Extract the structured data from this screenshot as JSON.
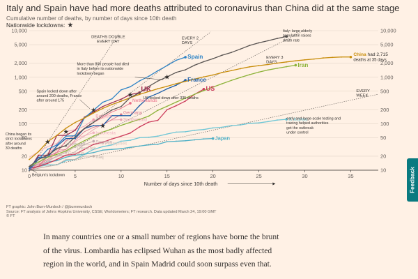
{
  "header": {
    "title": "Italy and Spain have had more deaths attributed to coronavirus than China did at the same stage",
    "subtitle": "Cumulative number of deaths, by number of days since 10th death",
    "lockdown_legend": "Nationwide lockdowns:"
  },
  "chart_data": {
    "type": "line",
    "title": "Italy and Spain have had more deaths attributed to coronavirus than China did at the same stage",
    "subtitle": "Cumulative number of deaths, by number of days since 10th death",
    "xlabel": "Number of days since 10th death",
    "ylabel": "",
    "xlim": [
      0,
      38
    ],
    "ylim": [
      10,
      10000
    ],
    "y_scale": "log",
    "x_ticks": [
      0,
      5,
      10,
      15,
      20,
      25,
      30,
      35
    ],
    "y_ticks": [
      10,
      20,
      50,
      100,
      200,
      500,
      1000,
      2000,
      5000,
      10000
    ],
    "y_tick_labels": [
      "10",
      "20",
      "50",
      "100",
      "200",
      "500",
      "1,000",
      "2,000",
      "5,000",
      "10,000"
    ],
    "grid": true,
    "guide_lines": [
      {
        "label": "DEATHS DOUBLE EVERY DAY",
        "doubling_days": 1
      },
      {
        "label": "EVERY 2 DAYS",
        "doubling_days": 2
      },
      {
        "label": "EVERY 3 DAYS",
        "doubling_days": 3
      },
      {
        "label": "EVERY WEEK",
        "doubling_days": 7
      }
    ],
    "series": [
      {
        "name": "Italy",
        "color": "#5a5553",
        "x": [
          0,
          1,
          2,
          3,
          4,
          5,
          6,
          7,
          8,
          9,
          10,
          11,
          12,
          13,
          14,
          15,
          16,
          17,
          18,
          19,
          20,
          21,
          22,
          23,
          24,
          25,
          26,
          27,
          28
        ],
        "y": [
          12,
          17,
          21,
          29,
          34,
          52,
          79,
          107,
          148,
          197,
          233,
          366,
          463,
          631,
          827,
          1016,
          1266,
          1441,
          1809,
          2158,
          2503,
          2978,
          3405,
          4032,
          4825,
          5476,
          6077,
          6820,
          7503
        ]
      },
      {
        "name": "China",
        "color": "#c88d0b",
        "x": [
          0,
          1,
          2,
          3,
          4,
          5,
          6,
          7,
          8,
          9,
          10,
          11,
          12,
          13,
          14,
          15,
          16,
          17,
          18,
          19,
          20,
          21,
          22,
          23,
          24,
          25,
          26,
          27,
          28,
          29,
          30,
          31,
          32,
          33,
          34,
          35
        ],
        "y": [
          17,
          25,
          41,
          56,
          80,
          106,
          132,
          170,
          213,
          259,
          304,
          362,
          426,
          492,
          565,
          638,
          724,
          813,
          910,
          1018,
          1115,
          1261,
          1383,
          1526,
          1669,
          1775,
          1873,
          2009,
          2126,
          2247,
          2360,
          2460,
          2595,
          2663,
          2715,
          2715
        ]
      },
      {
        "name": "Iran",
        "color": "#8db33a",
        "x": [
          0,
          1,
          2,
          3,
          4,
          5,
          6,
          7,
          8,
          9,
          10,
          11,
          12,
          13,
          14,
          15,
          16,
          17,
          18,
          19,
          20,
          21,
          22,
          23,
          24,
          25,
          26,
          27,
          28,
          29
        ],
        "y": [
          12,
          15,
          19,
          22,
          26,
          34,
          43,
          54,
          66,
          77,
          92,
          107,
          124,
          145,
          194,
          237,
          291,
          354,
          429,
          514,
          611,
          724,
          853,
          988,
          1135,
          1284,
          1433,
          1556,
          1685,
          1812
        ]
      },
      {
        "name": "Spain",
        "color": "#2f84c6",
        "x": [
          0,
          1,
          2,
          3,
          4,
          5,
          6,
          7,
          8,
          9,
          10,
          11,
          12,
          13,
          14,
          15,
          16,
          17
        ],
        "y": [
          10,
          17,
          28,
          35,
          54,
          55,
          133,
          195,
          289,
          342,
          533,
          623,
          830,
          1043,
          1375,
          1772,
          2311,
          2696
        ]
      },
      {
        "name": "France",
        "color": "#1b5da8",
        "x": [
          0,
          1,
          2,
          3,
          4,
          5,
          6,
          7,
          8,
          9,
          10,
          11,
          12,
          13,
          14,
          15,
          16,
          17
        ],
        "y": [
          11,
          19,
          19,
          33,
          48,
          48,
          79,
          91,
          91,
          149,
          149,
          149,
          244,
          372,
          450,
          562,
          674,
          860
        ]
      },
      {
        "name": "US",
        "color": "#cc3b5b",
        "x": [
          0,
          1,
          2,
          3,
          4,
          5,
          6,
          7,
          8,
          9,
          10,
          11,
          12,
          13,
          14,
          15,
          16,
          17,
          18,
          19
        ],
        "y": [
          11,
          12,
          14,
          17,
          21,
          22,
          28,
          36,
          40,
          47,
          54,
          63,
          85,
          108,
          118,
          200,
          244,
          307,
          427,
          553
        ]
      },
      {
        "name": "UK",
        "color": "#9e2f50",
        "x": [
          0,
          1,
          2,
          3,
          4,
          5,
          6,
          7,
          8,
          9,
          10,
          11,
          12
        ],
        "y": [
          10,
          21,
          21,
          56,
          56,
          72,
          138,
          178,
          234,
          282,
          336,
          423,
          466
        ]
      },
      {
        "name": "Netherlands",
        "color": "#e96b86",
        "x": [
          0,
          1,
          2,
          3,
          4,
          5,
          6,
          7,
          8,
          9,
          10,
          11
        ],
        "y": [
          10,
          12,
          20,
          24,
          43,
          58,
          76,
          106,
          136,
          179,
          213,
          276
        ]
      },
      {
        "name": "Germany",
        "color": "#d97a8f",
        "x": [
          0,
          1,
          2,
          3,
          4,
          5,
          6,
          7,
          8,
          9,
          10
        ],
        "y": [
          12,
          13,
          17,
          24,
          28,
          44,
          67,
          84,
          94,
          123,
          157
        ]
      },
      {
        "name": "Switzerland",
        "color": "#e8a3b1",
        "x": [
          0,
          1,
          2,
          3,
          4,
          5,
          6,
          7,
          8,
          9,
          10
        ],
        "y": [
          11,
          14,
          14,
          27,
          28,
          41,
          54,
          75,
          98,
          120,
          122
        ]
      },
      {
        "name": "Belgium",
        "color": "#ef9aae",
        "x": [
          0,
          1,
          2,
          3,
          4,
          5,
          6,
          7
        ],
        "y": [
          10,
          14,
          21,
          37,
          67,
          75,
          88,
          122
        ]
      },
      {
        "name": "Indonesia",
        "color": "#f1b2c0",
        "x": [
          0,
          1,
          2,
          3,
          4,
          5,
          6,
          7
        ],
        "y": [
          19,
          25,
          32,
          38,
          48,
          49,
          55,
          64
        ]
      },
      {
        "name": "Sweden",
        "color": "#c4a9b0",
        "x": [
          0,
          1,
          2,
          3,
          4,
          5,
          6,
          7
        ],
        "y": [
          10,
          12,
          16,
          20,
          21,
          25,
          36,
          42
        ]
      },
      {
        "name": "Portugal",
        "color": "#b8b0ab",
        "x": [
          0,
          1,
          2,
          3,
          4
        ],
        "y": [
          12,
          14,
          23,
          30,
          33
        ]
      },
      {
        "name": "Denmark",
        "color": "#c7bcb5",
        "x": [
          0,
          1,
          2,
          3,
          4,
          5
        ],
        "y": [
          13,
          13,
          15,
          20,
          24,
          32
        ]
      },
      {
        "name": "Philippines",
        "color": "#dcc6be",
        "x": [
          0,
          1,
          2,
          3,
          4,
          5,
          6,
          7,
          8
        ],
        "y": [
          12,
          15,
          17,
          19,
          25,
          33,
          35,
          35,
          38
        ]
      },
      {
        "name": "Canada",
        "color": "#d5b7ae",
        "x": [
          0,
          1,
          2,
          3,
          4
        ],
        "y": [
          12,
          13,
          19,
          21,
          24
        ]
      },
      {
        "name": "Iraq",
        "color": "#bfb0a8",
        "x": [
          0,
          1,
          2,
          3,
          4,
          5,
          6,
          7
        ],
        "y": [
          10,
          11,
          12,
          13,
          17,
          17,
          20,
          20
        ]
      },
      {
        "name": "Japan",
        "color": "#4fb0c6",
        "x": [
          0,
          1,
          2,
          3,
          4,
          5,
          6,
          7,
          8,
          9,
          10,
          11,
          12,
          13,
          14,
          15,
          16,
          17,
          18,
          19,
          20
        ],
        "y": [
          10,
          12,
          15,
          16,
          19,
          21,
          22,
          24,
          27,
          28,
          29,
          31,
          33,
          35,
          36,
          41,
          42,
          43,
          45,
          47,
          48
        ]
      },
      {
        "name": "S Korea",
        "color": "#6ec6d6",
        "x": [
          0,
          1,
          2,
          3,
          4,
          5,
          6,
          7,
          8,
          9,
          10,
          11,
          12,
          13,
          14,
          15,
          16,
          17,
          18,
          19,
          20,
          21,
          22,
          23,
          24,
          25,
          26,
          27,
          28
        ],
        "y": [
          11,
          12,
          13,
          13,
          16,
          17,
          22,
          28,
          32,
          35,
          42,
          44,
          50,
          51,
          54,
          60,
          66,
          67,
          72,
          75,
          81,
          84,
          91,
          94,
          102,
          104,
          111,
          120,
          124
        ]
      }
    ],
    "end_labels": [
      {
        "series": "Spain",
        "text": "Spain"
      },
      {
        "series": "France",
        "text": "France"
      },
      {
        "series": "US",
        "text": "US"
      },
      {
        "series": "UK",
        "text": "UK"
      },
      {
        "series": "Iran",
        "text": "Iran"
      },
      {
        "series": "Netherlands",
        "text": "Netherlands"
      },
      {
        "series": "Germany",
        "text": "Germany"
      },
      {
        "series": "Switzerland",
        "text": "Switzerland"
      },
      {
        "series": "Belgium",
        "text": "Belgium"
      },
      {
        "series": "Indonesia",
        "text": "Indonesia"
      },
      {
        "series": "Sweden",
        "text": "Sweden"
      },
      {
        "series": "Portugal",
        "text": "Portugal"
      },
      {
        "series": "Denmark",
        "text": "Denmark"
      },
      {
        "series": "Philippines",
        "text": "Philippines"
      },
      {
        "series": "Canada",
        "text": "Canada"
      },
      {
        "series": "Iraq",
        "text": "Iraq"
      },
      {
        "series": "Japan",
        "text": "Japan"
      },
      {
        "series": "S Korea",
        "text": "S Korea"
      }
    ],
    "lockdowns": [
      {
        "series": "Italy",
        "x": 15
      },
      {
        "series": "Spain",
        "x": 7
      },
      {
        "series": "France",
        "x": 8
      },
      {
        "series": "UK",
        "x": 11
      },
      {
        "series": "Belgium",
        "x": 4
      },
      {
        "series": "China",
        "x": 2
      }
    ],
    "annotations": {
      "italy": [
        "Italy: large elderly",
        "population raises",
        "death rate"
      ],
      "china": [
        "China had 2,715",
        "deaths at 35 days"
      ],
      "italy_lockdown": [
        "More than 800 people had died",
        "in Italy before its nationwide",
        "lockdown began"
      ],
      "spain_lockdown": [
        "Spain locked down after",
        "around 200 deaths, France",
        "after around 175"
      ],
      "uk_lockdown": "UK locked down after 335 deaths",
      "china_lockdown": [
        "China began its",
        "strict lockdowns",
        "after around",
        "30 deaths"
      ],
      "korea": [
        "early and large-scale testing and",
        "tracing helped authorities",
        "get the outbreak",
        "under control"
      ],
      "belgium_lockdown": "Belgium's lockdown"
    }
  },
  "footer": {
    "credit": "FT graphic: John Burn-Murdoch / @jburnmurdoch",
    "source": "Source: FT analysis of Johns Hopkins University, CSSE; Worldometers; FT research. Data updated March 24, 19:00 GMT",
    "copyright": "© FT"
  },
  "article": {
    "paragraph": "In many countries one or a small number of regions have borne the brunt of the virus. Lombardia has eclipsed Wuhan as the most badly affected region in the world, and in Spain Madrid could soon surpass even that."
  },
  "feedback": {
    "label": "Feedback"
  }
}
